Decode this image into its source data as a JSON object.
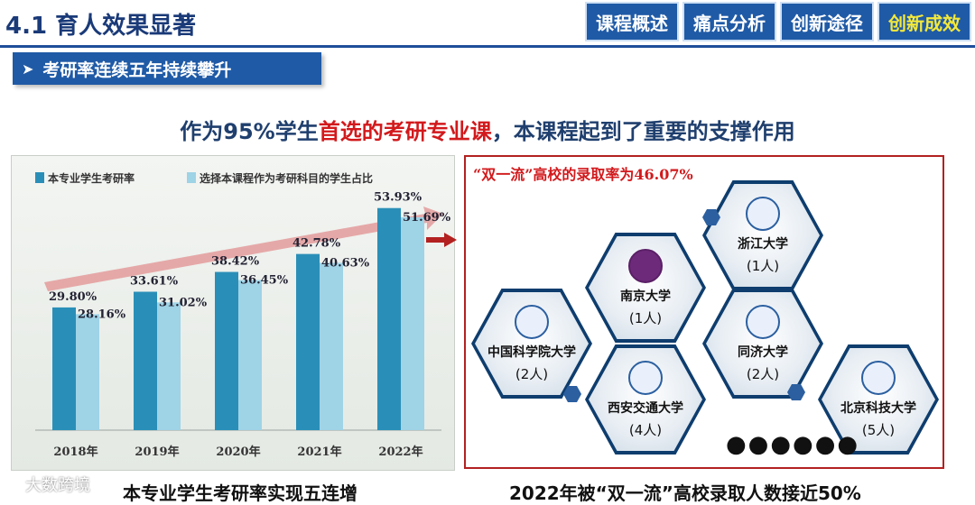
{
  "header": {
    "title": "4.1 育人效果显著",
    "tabs": [
      "课程概述",
      "痛点分析",
      "创新途径",
      "创新成效"
    ]
  },
  "subhead": {
    "text": "考研率连续五年持续攀升"
  },
  "headline": {
    "before": "作为95%学生",
    "emph": "首选的考研专业课",
    "after": "，本课程起到了重要的支撑作用"
  },
  "chart_data": {
    "type": "bar",
    "categories": [
      "2018年",
      "2019年",
      "2020年",
      "2021年",
      "2022年"
    ],
    "series": [
      {
        "name": "本专业学生考研率",
        "values": [
          29.8,
          33.61,
          38.42,
          42.78,
          53.93
        ],
        "labels": [
          "29.80%",
          "33.61%",
          "38.42%",
          "42.78%",
          "53.93%"
        ]
      },
      {
        "name": "选择本课程作为考研科目的学生占比",
        "values": [
          28.16,
          31.02,
          36.45,
          40.63,
          51.69
        ],
        "labels": [
          "28.16%",
          "31.02%",
          "36.45%",
          "40.63%",
          "51.69%"
        ]
      }
    ],
    "ylim": [
      0,
      60
    ],
    "colors": [
      "#2a8fb8",
      "#9fd3e6"
    ]
  },
  "right_panel": {
    "title": "“双一流”高校的录取率为46.07%",
    "hexes": [
      {
        "name": "浙江大学",
        "count": "(1人)"
      },
      {
        "name": "南京大学",
        "count": "(1人)"
      },
      {
        "name": "中国科学院大学",
        "count": "(2人)"
      },
      {
        "name": "同济大学",
        "count": "(2人)"
      },
      {
        "name": "西安交通大学",
        "count": "(4人)"
      },
      {
        "name": "北京科技大学",
        "count": "(5人)"
      }
    ],
    "more": "●●●●●●"
  },
  "footer": {
    "left": "本专业学生考研率实现五连增",
    "right": "2022年被“双一流”高校录取人数接近50%",
    "watermark": "大数跨境"
  }
}
